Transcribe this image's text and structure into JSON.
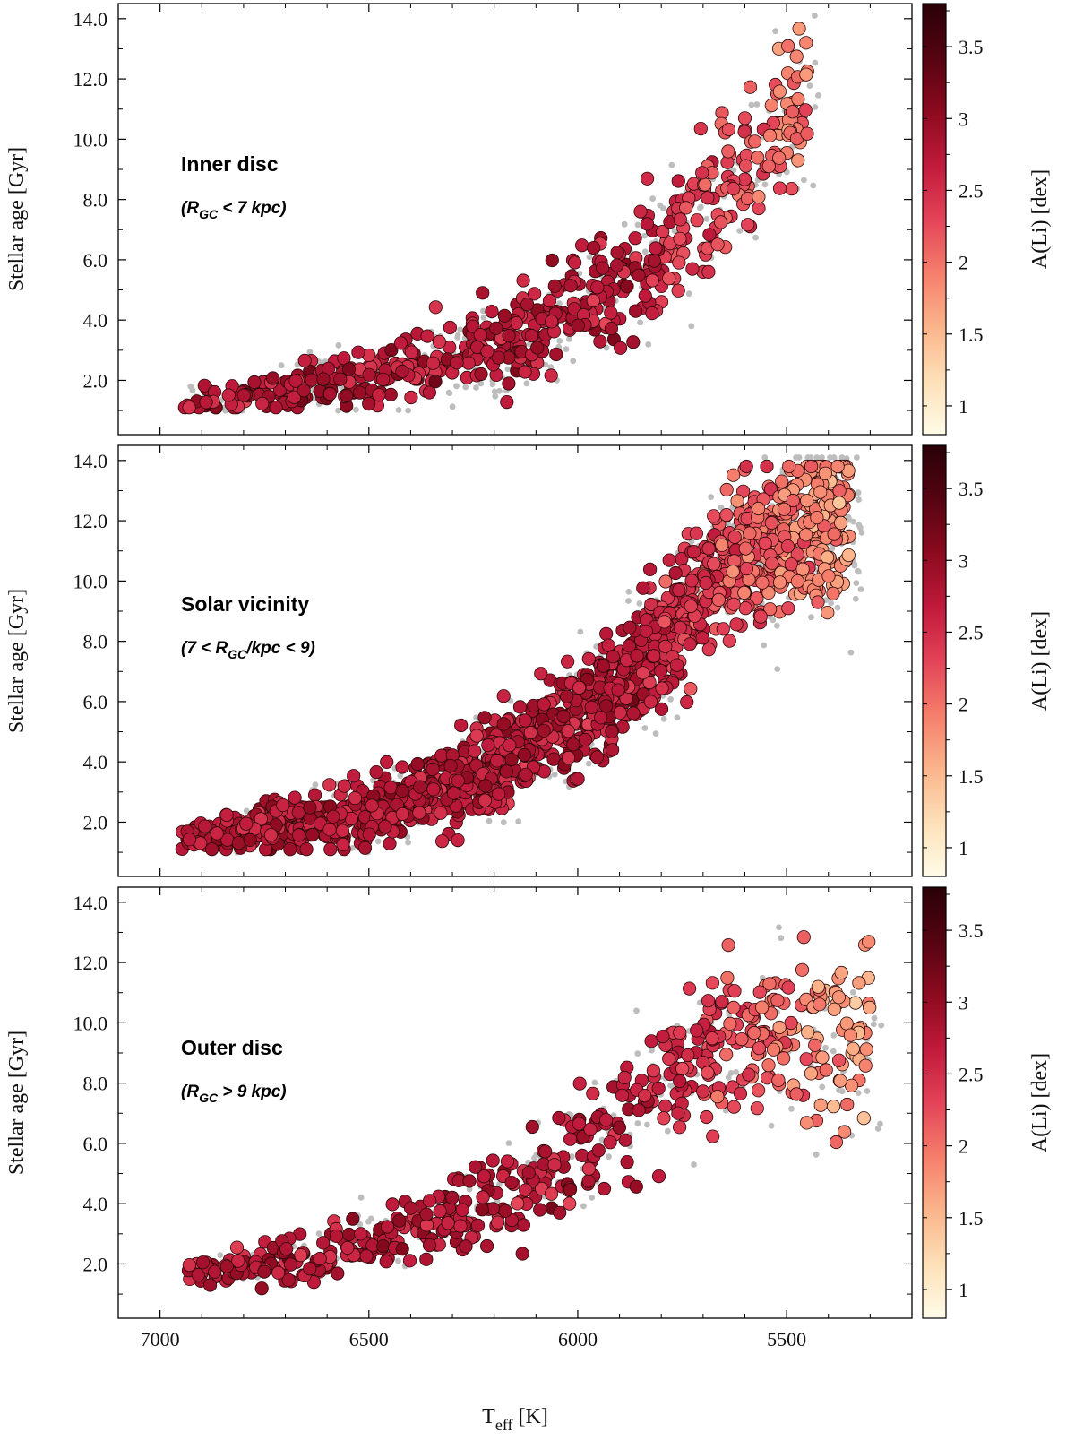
{
  "chart_data": [
    {
      "type": "scatter",
      "panel": "inner",
      "label": "Inner disc",
      "sublabel_pre": "(R",
      "sublabel_sub": "GC",
      "sublabel_post": " < 7 kpc)",
      "ylabel": "Stellar age [Gyr]",
      "xlabel_main": "T",
      "xlabel_sub": "eff",
      "xlabel_unit": " [K]",
      "colorbar_label": "A(Li) [dex]",
      "xlim": [
        7100,
        5200
      ],
      "ylim": [
        0.2,
        14.5
      ],
      "clim": [
        0.8,
        3.8
      ],
      "yticks": [
        "2.0",
        "4.0",
        "6.0",
        "8.0",
        "10.0",
        "12.0",
        "14.0"
      ],
      "xticks": [
        "7000",
        "6500",
        "6000",
        "5500"
      ],
      "cticks": [
        "1",
        "1.5",
        "2",
        "2.5",
        "3",
        "3.5"
      ],
      "trend": {
        "teff": [
          6950,
          6500,
          6200,
          6000,
          5800,
          5650,
          5500,
          5450
        ],
        "age": [
          1.2,
          2.0,
          3.0,
          4.2,
          6.2,
          8.5,
          10.3,
          11.5
        ]
      },
      "colored_points": 540,
      "grey_points": 260,
      "seed": 11
    },
    {
      "type": "scatter",
      "panel": "solar",
      "label": "Solar vicinity",
      "sublabel_pre": "(7 < R",
      "sublabel_sub": "GC",
      "sublabel_post": "/kpc < 9)",
      "ylabel": "Stellar age [Gyr]",
      "colorbar_label": "A(Li) [dex]",
      "xlim": [
        7100,
        5200
      ],
      "ylim": [
        0.2,
        14.5
      ],
      "clim": [
        0.8,
        3.8
      ],
      "yticks": [
        "2.0",
        "4.0",
        "6.0",
        "8.0",
        "10.0",
        "12.0",
        "14.0"
      ],
      "xticks": [
        "7000",
        "6500",
        "6000",
        "5500"
      ],
      "cticks": [
        "1",
        "1.5",
        "2",
        "2.5",
        "3",
        "3.5"
      ],
      "trend": {
        "teff": [
          6950,
          6500,
          6200,
          6000,
          5800,
          5650,
          5500,
          5350
        ],
        "age": [
          1.4,
          2.3,
          3.8,
          5.5,
          8.0,
          10.5,
          11.5,
          12.0
        ]
      },
      "colored_points": 1500,
      "grey_points": 650,
      "seed": 23
    },
    {
      "type": "scatter",
      "panel": "outer",
      "label": "Outer disc",
      "sublabel_pre": "(R",
      "sublabel_sub": "GC",
      "sublabel_post": " > 9 kpc)",
      "ylabel": "Stellar age [Gyr]",
      "xlabel_main": "T",
      "xlabel_sub": "eff",
      "xlabel_unit": " [K]",
      "colorbar_label": "A(Li) [dex]",
      "xlim": [
        7100,
        5200
      ],
      "ylim": [
        0.2,
        14.5
      ],
      "clim": [
        0.8,
        3.8
      ],
      "yticks": [
        "2.0",
        "4.0",
        "6.0",
        "8.0",
        "10.0",
        "12.0",
        "14.0"
      ],
      "xticks": [
        "7000",
        "6500",
        "6000",
        "5500"
      ],
      "cticks": [
        "1",
        "1.5",
        "2",
        "2.5",
        "3",
        "3.5"
      ],
      "trend": {
        "teff": [
          7000,
          6600,
          6300,
          6100,
          5950,
          5800,
          5650,
          5450,
          5300
        ],
        "age": [
          1.6,
          2.3,
          3.5,
          4.8,
          6.2,
          8.0,
          9.5,
          9.5,
          9.5
        ]
      },
      "colored_points": 520,
      "grey_points": 200,
      "seed": 37
    }
  ],
  "colormap": [
    "#fffbe8",
    "#fde0b8",
    "#fbb48a",
    "#f57e6b",
    "#e34358",
    "#c01a3c",
    "#8c0a1f",
    "#560412",
    "#2a0108"
  ],
  "grey_color": "#bdbdbd"
}
